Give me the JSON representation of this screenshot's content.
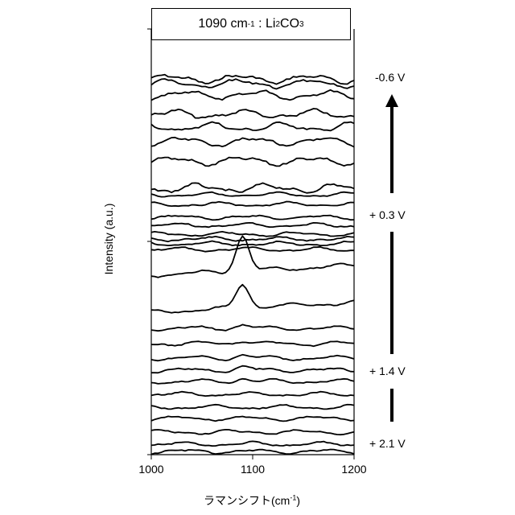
{
  "chart_data": {
    "type": "line",
    "title": {
      "wavenumber": "1090",
      "unit_base": "cm",
      "unit_exp": "-1",
      "separator": " : ",
      "formula_a": "Li",
      "formula_sub1": "2",
      "formula_b": "CO",
      "formula_sub2": "3"
    },
    "xlabel": {
      "prefix": "ラマンシフト(cm",
      "exp": "-1",
      "suffix": ")"
    },
    "ylabel": "Intensity (a.u.)",
    "xlim": [
      1000,
      1200
    ],
    "x_ticks": [
      "1000",
      "1100",
      "1200"
    ],
    "stacked": true,
    "potential_labels": [
      "-0.6 V",
      "+ 0.3 V",
      "+ 1.4 V",
      "+ 2.1 V"
    ],
    "sweep_direction": "upward",
    "peak_position": 1090,
    "spectra_count": 30
  },
  "colors": {
    "line": "#000000",
    "background": "#ffffff"
  }
}
